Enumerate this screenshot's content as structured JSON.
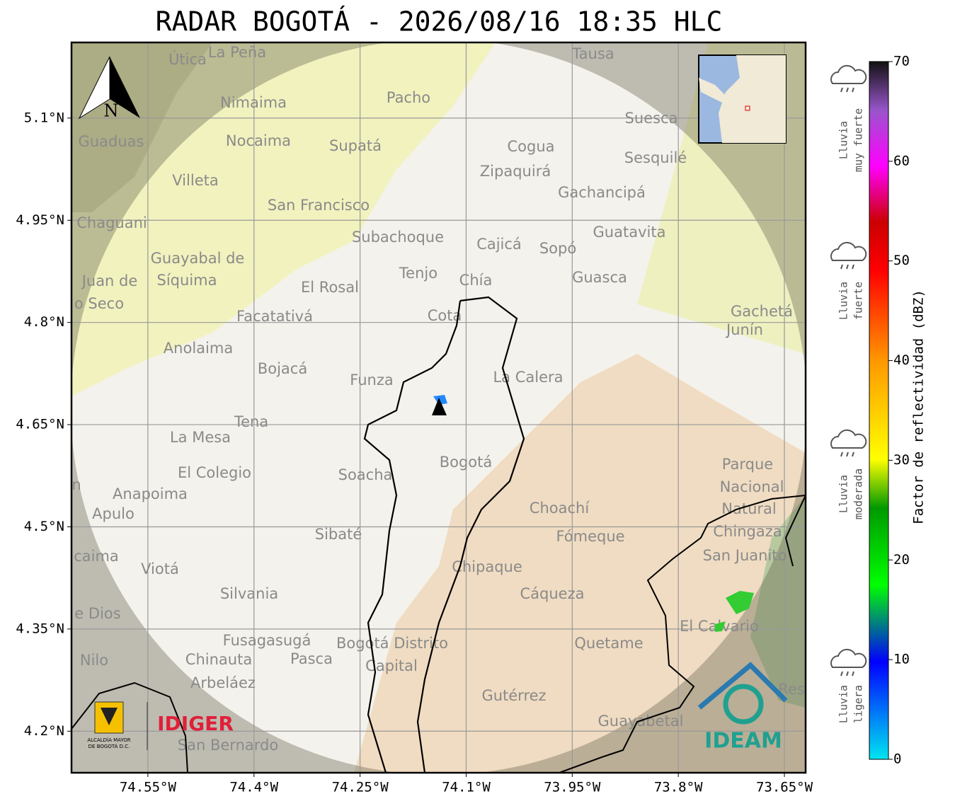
{
  "title": "RADAR BOGOTÁ - 2026/08/16 18:35 HLC",
  "map": {
    "lon_range": [
      -74.658,
      -73.62
    ],
    "lat_range": [
      4.139,
      5.211
    ],
    "x_ticks": [
      {
        "value": -74.55,
        "label": "74.55°W"
      },
      {
        "value": -74.4,
        "label": "74.4°W"
      },
      {
        "value": -74.25,
        "label": "74.25°W"
      },
      {
        "value": -74.1,
        "label": "74.1°W"
      },
      {
        "value": -73.95,
        "label": "73.95°W"
      },
      {
        "value": -73.8,
        "label": "73.8°W"
      },
      {
        "value": -73.65,
        "label": "73.65°W"
      }
    ],
    "y_ticks": [
      {
        "value": 5.1,
        "label": "5.1°N"
      },
      {
        "value": 4.95,
        "label": "4.95°N"
      },
      {
        "value": 4.8,
        "label": "4.8°N"
      },
      {
        "value": 4.65,
        "label": "4.65°N"
      },
      {
        "value": 4.5,
        "label": "4.5°N"
      },
      {
        "value": 4.35,
        "label": "4.35°N"
      },
      {
        "value": 4.2,
        "label": "4.2°N"
      }
    ],
    "places": [
      "Útica",
      "La Peña",
      "Tausa",
      "Pacho",
      "Nimaima",
      "Suesca",
      "Guaduas",
      "Nocaima",
      "Supatá",
      "Cogua",
      "Sesquilé",
      "Zipaquirá",
      "Villeta",
      "Gachancipá",
      "San Francisco",
      "Chaguani",
      "Guatavita",
      "Subachoque",
      "Cajicá",
      "Sopó",
      "Guayabal de",
      "Síquima",
      "Tenjo",
      "Guasca",
      "Chía",
      "Juan de",
      "El Rosal",
      "o Seco",
      "Gachetá",
      "Junín",
      "Facatativá",
      "Cota",
      "Anolaima",
      "Bojacá",
      "La Calera",
      "Funza",
      "Tena",
      "La Mesa",
      "Bogotá",
      "Parque",
      "Nacional",
      "Natural",
      "Chingaza",
      "El Colegio",
      "Soacha",
      "Anapoima",
      "Apulo",
      "Choachí",
      "Fómeque",
      "Sibaté",
      "San Juanito",
      "caima",
      "Viotá",
      "Chipaque",
      "Silvania",
      "Cáqueza",
      "e Dios",
      "El Calvario",
      "Fusagasugá",
      "Bogotá Distrito",
      "Capital",
      "Quetame",
      "Nilo",
      "Chinauta",
      "Pasca",
      "Arbeláez",
      "Gutérrez",
      "Res",
      "Guayabetal",
      "San Bernardo",
      "n"
    ],
    "north": "N"
  },
  "logos": {
    "idiger": "IDIGER",
    "alcaldia": [
      "ALCALDÍA MAYOR",
      "DE BOGOTÁ D.C."
    ],
    "ideam": "IDEAM"
  },
  "colorbar": {
    "label": "Factor de reflectividad (dBZ)",
    "range": [
      0,
      70
    ],
    "ticks": [
      0,
      10,
      20,
      30,
      40,
      50,
      60,
      70
    ]
  },
  "rain_legend": [
    [
      "Lluvia",
      "muy fuerte"
    ],
    [
      "Lluvia",
      "fuerte"
    ],
    [
      "Lluvia",
      "moderada"
    ],
    [
      "Lluvia",
      "ligera"
    ]
  ]
}
